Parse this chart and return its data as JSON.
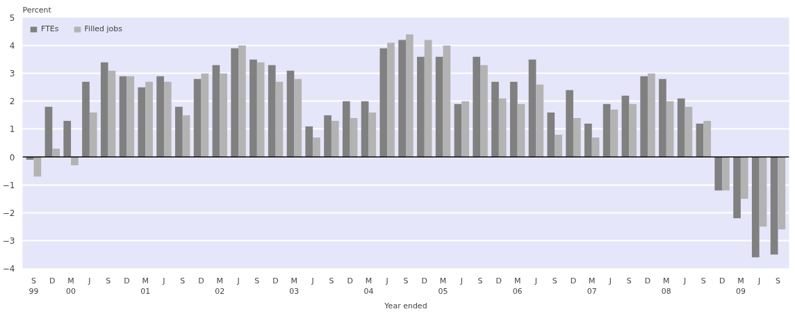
{
  "chart_data": {
    "type": "bar",
    "ylabel": "Percent",
    "xlabel": "Year ended",
    "categories": [
      "S\n99",
      "D",
      "M\n00",
      "J",
      "S",
      "D",
      "M\n01",
      "J",
      "S",
      "D",
      "M\n02",
      "J",
      "S",
      "D",
      "M\n03",
      "J",
      "S",
      "D",
      "M\n04",
      "J",
      "S",
      "D",
      "M\n05",
      "J",
      "S",
      "D",
      "M\n06",
      "J",
      "S",
      "D",
      "M\n07",
      "J",
      "S",
      "D",
      "M\n08",
      "J",
      "S",
      "D",
      "M\n09",
      "J",
      "S"
    ],
    "series": [
      {
        "name": "FTEs",
        "color": "#808080",
        "values": [
          -0.1,
          1.8,
          1.3,
          2.7,
          3.4,
          2.9,
          2.5,
          2.9,
          1.8,
          2.8,
          3.3,
          3.9,
          3.5,
          3.3,
          3.1,
          1.1,
          1.5,
          2.0,
          2.0,
          3.9,
          4.2,
          3.6,
          3.6,
          1.9,
          3.6,
          2.7,
          2.7,
          3.5,
          1.6,
          2.4,
          1.2,
          1.9,
          2.2,
          2.9,
          2.8,
          2.1,
          1.2,
          -1.2,
          -2.2,
          -3.6,
          -3.5
        ]
      },
      {
        "name": "Filled jobs",
        "color": "#b3b3b3",
        "values": [
          -0.7,
          0.3,
          -0.3,
          1.6,
          3.1,
          2.9,
          2.7,
          2.7,
          1.5,
          3.0,
          3.0,
          4.0,
          3.4,
          2.7,
          2.8,
          0.7,
          1.3,
          1.4,
          1.6,
          4.1,
          4.4,
          4.2,
          4.0,
          2.0,
          3.3,
          2.1,
          1.9,
          2.6,
          0.8,
          1.4,
          0.7,
          1.7,
          1.9,
          3.0,
          2.0,
          1.8,
          1.3,
          -1.2,
          -1.5,
          -2.5,
          -2.6
        ]
      }
    ],
    "ylim": [
      -4,
      5
    ],
    "yticks": [
      -4,
      -3,
      -2,
      -1,
      0,
      1,
      2,
      3,
      4,
      5
    ],
    "grid": "y",
    "legend": "top left"
  }
}
